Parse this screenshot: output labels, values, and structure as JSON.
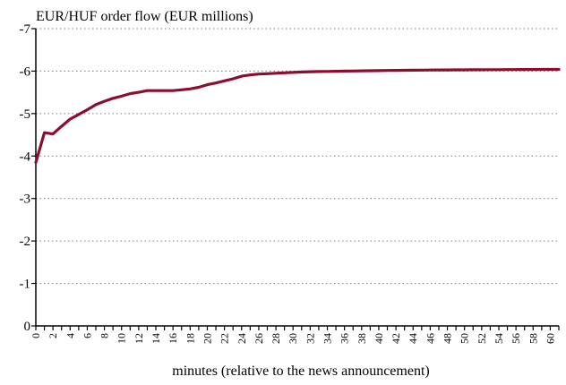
{
  "chart_data": {
    "type": "line",
    "title": "EUR/HUF order flow (EUR millions)",
    "xlabel": "minutes (relative to the news announcement)",
    "ylabel": "",
    "xlim": [
      0,
      61
    ],
    "ylim": [
      0,
      -7
    ],
    "y_axis_inverted": true,
    "grid": "horizontal dotted",
    "line_color": "#8b0e2e",
    "x_tick_labels": [
      "0",
      "2",
      "4",
      "6",
      "8",
      "10",
      "12",
      "14",
      "16",
      "18",
      "20",
      "22",
      "24",
      "26",
      "28",
      "30",
      "32",
      "34",
      "36",
      "38",
      "40",
      "42",
      "44",
      "46",
      "48",
      "50",
      "52",
      "54",
      "56",
      "58",
      "60"
    ],
    "y_tick_labels": [
      "0",
      "-1",
      "-2",
      "-3",
      "-4",
      "-5",
      "-6",
      "-7"
    ],
    "series": [
      {
        "x": [
          0,
          1,
          2,
          3,
          4,
          5,
          6,
          7,
          8,
          9,
          10,
          11,
          12,
          13,
          14,
          15,
          16,
          17,
          18,
          19,
          20,
          21,
          22,
          23,
          24,
          25,
          26,
          27,
          28,
          29,
          30,
          31,
          32,
          33,
          34,
          35,
          36,
          37,
          38,
          39,
          40,
          41,
          42,
          43,
          44,
          45,
          46,
          47,
          48,
          49,
          50,
          51,
          52,
          53,
          54,
          55,
          56,
          57,
          58,
          59,
          60,
          61
        ],
        "values": [
          -3.85,
          -4.55,
          -4.52,
          -4.7,
          -4.87,
          -4.98,
          -5.09,
          -5.21,
          -5.29,
          -5.36,
          -5.41,
          -5.47,
          -5.5,
          -5.54,
          -5.54,
          -5.54,
          -5.54,
          -5.56,
          -5.58,
          -5.62,
          -5.68,
          -5.72,
          -5.77,
          -5.82,
          -5.88,
          -5.91,
          -5.93,
          -5.94,
          -5.95,
          -5.96,
          -5.97,
          -5.98,
          -5.985,
          -5.99,
          -5.993,
          -5.996,
          -6.0,
          -6.003,
          -6.006,
          -6.009,
          -6.012,
          -6.015,
          -6.017,
          -6.019,
          -6.021,
          -6.023,
          -6.025,
          -6.027,
          -6.029,
          -6.03,
          -6.031,
          -6.032,
          -6.033,
          -6.034,
          -6.035,
          -6.036,
          -6.037,
          -6.038,
          -6.039,
          -6.04,
          -6.04,
          -6.04
        ]
      }
    ]
  }
}
